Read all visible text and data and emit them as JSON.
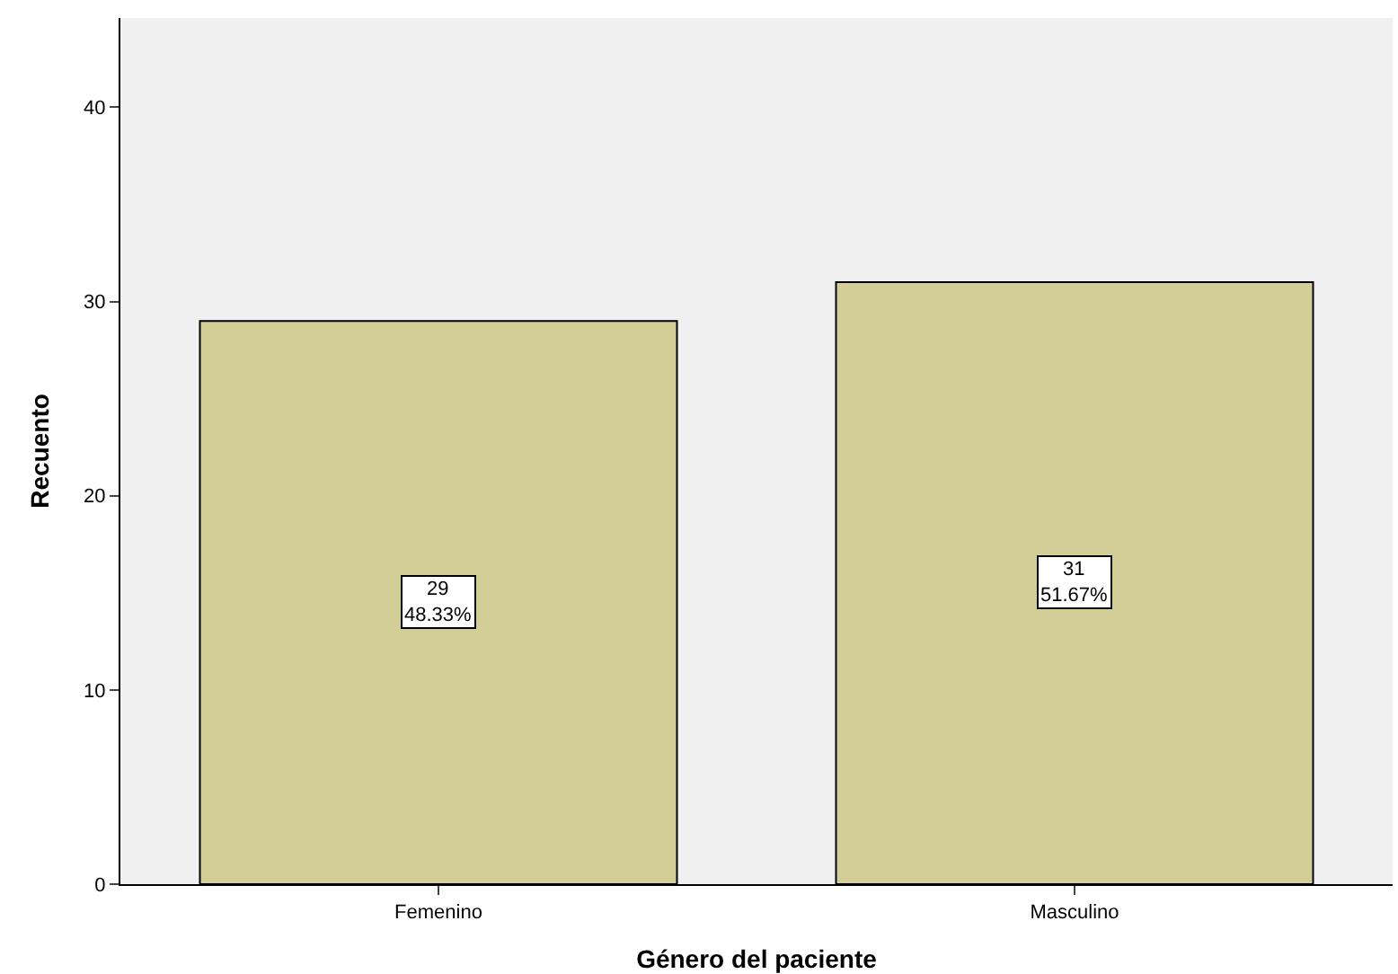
{
  "chart_data": {
    "type": "bar",
    "xlabel": "Género del paciente",
    "ylabel": "Recuento",
    "categories": [
      "Femenino",
      "Masculino"
    ],
    "values": [
      29,
      31
    ],
    "value_labels": [
      "29\n48.33%",
      "31\n51.67%"
    ],
    "color": "#d3ce97",
    "ylim": [
      0,
      44.6
    ],
    "yticks": [
      0,
      10,
      20,
      30,
      40
    ],
    "grid": false,
    "legend": false
  }
}
